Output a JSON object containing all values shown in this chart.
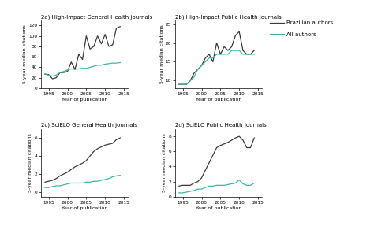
{
  "title_2a": "2a) High-Impact General Health journals",
  "title_2b": "2b) High-Impact Public Health journals",
  "title_2c": "2c) SciELO General Health journals",
  "title_2d": "2d) SciELO Public Health journals",
  "xlabel": "Year of publication",
  "ylabel": "5-year median citations",
  "legend_brazilian": "Brazilian authors",
  "legend_all": "All authors",
  "color_brazilian": "#3a3a3a",
  "color_all": "#3cb8a0",
  "years": [
    1994,
    1995,
    1996,
    1997,
    1998,
    1999,
    2000,
    2001,
    2002,
    2003,
    2004,
    2005,
    2006,
    2007,
    2008,
    2009,
    2010,
    2011,
    2012,
    2013,
    2014
  ],
  "panel_2a_brazil": [
    27,
    26,
    18,
    20,
    30,
    30,
    32,
    50,
    36,
    65,
    55,
    100,
    75,
    80,
    100,
    85,
    103,
    80,
    83,
    115,
    118
  ],
  "panel_2a_all": [
    27,
    25,
    23,
    25,
    30,
    32,
    35,
    37,
    36,
    37,
    38,
    38,
    40,
    42,
    44,
    44,
    46,
    47,
    48,
    48,
    49
  ],
  "panel_2b_brazil": [
    9,
    9,
    9,
    10,
    12,
    13,
    14,
    16,
    17,
    15,
    20,
    17,
    19,
    18,
    19,
    22,
    23,
    18,
    17,
    17,
    18
  ],
  "panel_2b_all": [
    9,
    9,
    9,
    10,
    11,
    13,
    14,
    15,
    16,
    16,
    17,
    17,
    17,
    17,
    18,
    18,
    18,
    17,
    17,
    17,
    17
  ],
  "panel_2c_brazil": [
    1.1,
    1.2,
    1.3,
    1.5,
    1.8,
    2.0,
    2.2,
    2.5,
    2.8,
    3.0,
    3.2,
    3.5,
    4.0,
    4.5,
    4.8,
    5.0,
    5.2,
    5.3,
    5.4,
    5.8,
    6.0
  ],
  "panel_2c_all": [
    0.5,
    0.5,
    0.6,
    0.7,
    0.7,
    0.8,
    0.9,
    1.0,
    1.0,
    1.0,
    1.0,
    1.1,
    1.1,
    1.2,
    1.2,
    1.3,
    1.4,
    1.5,
    1.7,
    1.8,
    1.85
  ],
  "panel_2d_brazil": [
    1.4,
    1.5,
    1.5,
    1.5,
    1.8,
    2.0,
    2.5,
    3.5,
    4.5,
    5.5,
    6.5,
    6.8,
    7.0,
    7.2,
    7.5,
    7.8,
    8.0,
    7.5,
    6.5,
    6.5,
    7.8
  ],
  "panel_2d_all": [
    0.5,
    0.5,
    0.6,
    0.7,
    0.8,
    1.0,
    1.0,
    1.2,
    1.4,
    1.4,
    1.5,
    1.5,
    1.5,
    1.6,
    1.7,
    1.8,
    2.2,
    1.7,
    1.5,
    1.5,
    1.8
  ],
  "xlim": [
    1993,
    2016
  ],
  "xticks": [
    1995,
    2000,
    2005,
    2010,
    2015
  ],
  "ylim_2a": [
    0,
    130
  ],
  "yticks_2a": [
    0,
    20,
    40,
    60,
    80,
    100,
    120
  ],
  "ylim_2b": [
    8,
    26
  ],
  "yticks_2b": [
    10,
    15,
    20,
    25
  ],
  "ylim_2c": [
    -0.5,
    7
  ],
  "yticks_2c": [
    0,
    2,
    4,
    6
  ],
  "ylim_2d": [
    0,
    9
  ],
  "yticks_2d": [
    0,
    2,
    4,
    6,
    8
  ],
  "background_color": "#ffffff",
  "line_width": 0.9,
  "title_fontsize": 5.0,
  "label_fontsize": 4.5,
  "tick_fontsize": 4.2,
  "legend_fontsize": 5.0
}
